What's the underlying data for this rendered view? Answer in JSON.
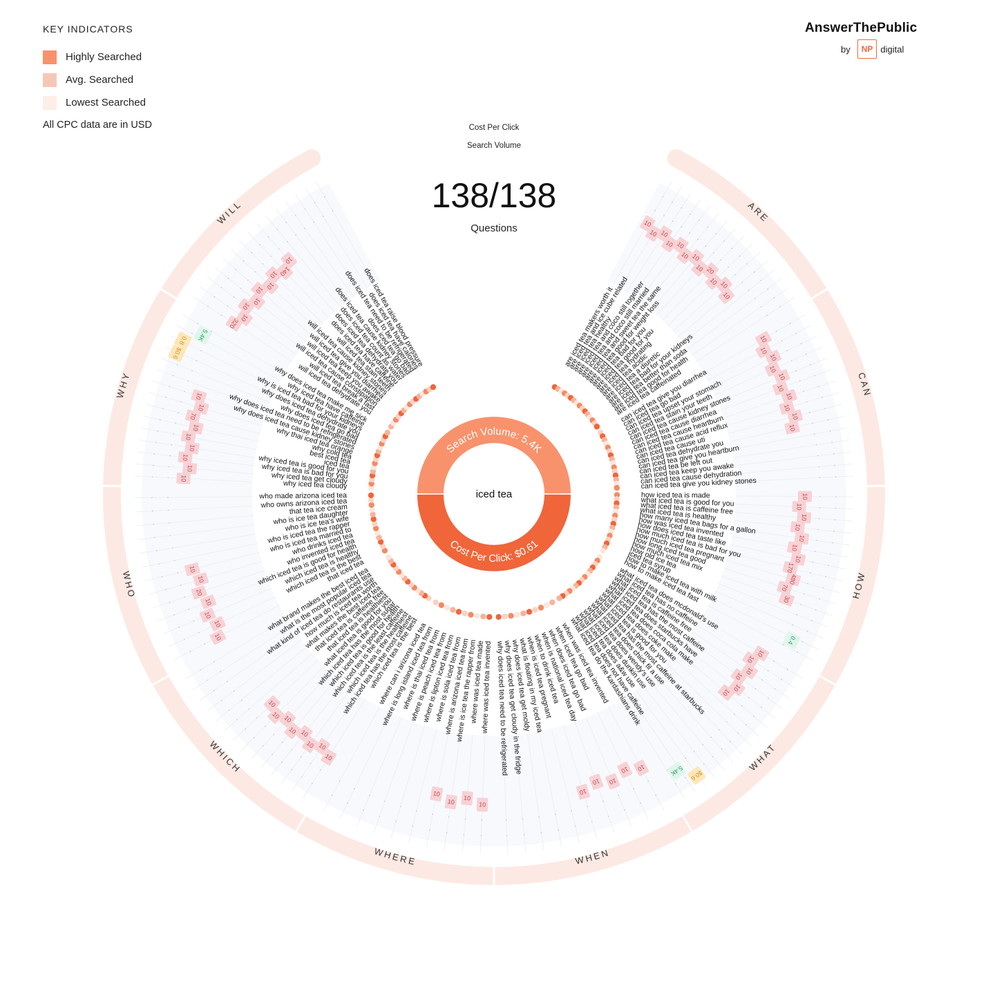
{
  "legend": {
    "title": "KEY INDICATORS",
    "items": [
      {
        "label": "Highly Searched",
        "color": "#f8926c"
      },
      {
        "label": "Avg. Searched",
        "color": "#f7c7b5"
      },
      {
        "label": "Lowest Searched",
        "color": "#fdeee8"
      }
    ],
    "note": "All CPC data are in USD"
  },
  "brand": {
    "name": "AnswerThePublic",
    "by": "by",
    "np": "NP",
    "digital": "digital"
  },
  "header": {
    "cpc_label": "Cost Per Click",
    "sv_label": "Search Volume",
    "count": "138/138",
    "count_label": "Questions"
  },
  "center": {
    "keyword": "iced tea",
    "search_volume": "Search Volume: 5.4K",
    "cpc": "Cost Per Click: $0.61"
  },
  "colors": {
    "accent": "#f0653a",
    "accent_light": "#f8926c",
    "ring": "#fde9e3",
    "badge": "#f7d2d5",
    "badge_text": "#c9484f",
    "green": "#dff6ea",
    "green_text": "#2aa56a",
    "yellow": "#fde7b8",
    "yellow_text": "#d9902a"
  },
  "sections": [
    {
      "name": "ARE",
      "questions": [
        "are iced tea makers worth it",
        "are iced tea and ice cube related",
        "are iced tea healthy",
        "are iced tea and coco still together",
        "are iced tea and coco still married",
        "are iced tea and sweet tea the same",
        "are iced tea good for weight loss",
        "are iced tea bad for you",
        "are iced tea good for you",
        "are iced tea hydrating",
        "are iced tea acidic",
        "are iced tea a diuretic",
        "are iced tea bad for your kidneys",
        "are iced tea better than soda",
        "are iced tea good for health",
        "are iced tea caffeinated"
      ]
    },
    {
      "name": "CAN",
      "questions": [
        "can iced tea give you diarrhea",
        "can iced tea go bad",
        "can iced tea upset your stomach",
        "can iced tea stain your teeth",
        "can iced tea cause kidney stones",
        "can iced tea cause diarrhea",
        "can iced tea cause heartburn",
        "can iced tea cause acid reflux",
        "can iced tea cause uti",
        "can iced tea dehydrate you",
        "can iced tea give you heartburn",
        "can iced tea be left out",
        "can iced tea keep you awake",
        "can iced tea cause dehydration",
        "can iced tea give you kidney stones"
      ]
    },
    {
      "name": "HOW",
      "questions": [
        "how iced tea is made",
        "what iced tea is good for you",
        "what iced tea is caffeine free",
        "what iced tea is healthy",
        "how many iced tea bags for a gallon",
        "how was iced tea invented",
        "how does iced tea taste like",
        "how much iced tea is bad for you",
        "how much iced tea pregnant",
        "how long iced tea good",
        "how much iced tea mix",
        "how old ice tea",
        "iced tea syrup",
        "how to make iced tea with milk",
        "how to make iced tea fast"
      ]
    },
    {
      "name": "WHAT",
      "questions": [
        "what iced tea does mcdonald's use",
        "what iced tea has no caffeine",
        "what iced tea is caffeine free",
        "what iced tea has the most caffeine",
        "what iced tea does starbucks have",
        "what iced tea does coca cola make",
        "what iced tea does coke make",
        "what iced tea is good for you",
        "what iced tea has the most caffeine at starbucks",
        "what iced tea does chick fil a use",
        "what iced tea does wendy's use",
        "what iced tea does dunkin use",
        "what iced tea does a&w use",
        "what iced tea does not have caffeine",
        "what iced tea do the kardashians drink"
      ]
    },
    {
      "name": "WHEN",
      "questions": [
        "when was iced tea invented",
        "when iced tea go bad",
        "when does iced tea go bad",
        "when is national iced tea day",
        "when to drink iced tea",
        "when is iced tea pregnant",
        "what is floating in my iced tea",
        "why does iced tea get moldy",
        "why does iced tea get cloudy in the fridge",
        "why does iced tea need to be refrigerated"
      ]
    },
    {
      "name": "WHERE",
      "questions": [
        "where was iced tea invented",
        "where was iced tea made",
        "where is ice tea the rapper from",
        "where is arizona iced tea from",
        "where is sola iced tea from",
        "where is lipton iced tea from",
        "where is peach iced tea from",
        "where is thai iced tea from",
        "where is long island iced tea from",
        "where can i arizona iced tea"
      ]
    },
    {
      "name": "WHICH",
      "questions": [
        "which iced tea is the best",
        "which iced tea has the most caffeine",
        "which iced tea is the healthiest",
        "which iced tea is the least caffeine",
        "which iced tea is good for health",
        "which iced tea has the most sugar",
        "what iced tea is good for you",
        "that iced tea is healthiest",
        "that iced tea is caffeine free",
        "what makes the best iced tea",
        "how much is iced tea worth",
        "what kind of iced tea do restaurants use",
        "what is the most popular iced tea",
        "what brand makes the best iced tea"
      ]
    },
    {
      "name": "WHO",
      "questions": [
        "that iced tea",
        "which iced tea is the best",
        "which iced tea is healthy",
        "which iced tea is good for health",
        "who invented iced tea",
        "who drinks iced tea",
        "who is iced tea married to",
        "who is iced tea the rapper",
        "who is ice tea's wife",
        "who is ice tea daughter",
        "that tea ice cream",
        "who owns arizona iced tea",
        "who made arizona iced tea"
      ]
    },
    {
      "name": "WHY",
      "questions": [
        "why iced tea cloudy",
        "why iced tea get cloudy",
        "why iced tea is bad for you",
        "why iced tea is good for you",
        "iced tea",
        "best iced tea",
        "why cold tea",
        "why thai iced tea orange",
        "why does iced tea cause kidney stones",
        "why does iced tea need to be refrigerated",
        "why does iced tea go bad",
        "why does iced tea dehydrate you",
        "why is iced tea bad for your kidneys",
        "why iced tea have caffeine",
        "why does iced tea make me sick"
      ]
    },
    {
      "name": "WILL",
      "questions": [
        "will iced tea dehydrate you",
        "will iced tea break a fast",
        "will iced tea cause constipation",
        "will iced tea keep you awake",
        "will iced tea give you diarrhea",
        "will iced tea cause kidney stones",
        "will iced tea stain teeth",
        "does iced tea have caffeine",
        "does iced tea dehydrate you",
        "does iced tea count as water",
        "does iced tea cause kidney stones",
        "does iced tea go bad",
        "does iced tea need to be refrigerated",
        "does iced tea have calories",
        "does iced tea raise blood pressure"
      ]
    }
  ],
  "badges": {
    "ARE": [
      "10",
      "10",
      "10",
      "10",
      "10",
      "10",
      "10",
      "10",
      "20",
      "10",
      "10",
      "10"
    ],
    "CAN": [
      "10",
      "10",
      "10",
      "10",
      "10",
      "10",
      "10",
      "10",
      "10",
      "10"
    ],
    "HOW": [
      "10",
      "10",
      "10",
      "10",
      "10",
      "10",
      "10",
      "170",
      "480",
      "70",
      "30"
    ],
    "WHAT": [
      "10",
      "10",
      "10",
      "10",
      "10",
      "10"
    ],
    "WHEN": [
      "10",
      "10",
      "10",
      "10",
      "10"
    ],
    "WHERE": [
      "10",
      "10",
      "10",
      "10"
    ],
    "WHICH": [
      "10",
      "10",
      "10",
      "10",
      "10",
      "10",
      "10",
      "10"
    ],
    "WHO": [
      "10",
      "10",
      "10",
      "10",
      "20",
      "10",
      "10"
    ],
    "WHY": [
      "10",
      "10",
      "10",
      "10",
      "10",
      "10",
      "70",
      "10",
      "10"
    ],
    "WILL": [
      "320",
      "10",
      "10",
      "10",
      "10",
      "10",
      "10",
      "140",
      "10"
    ]
  },
  "specials": [
    {
      "section": "HOW",
      "kind": "green",
      "text": "0.4"
    },
    {
      "section": "WHAT",
      "kind": "green",
      "text": "5.4K"
    },
    {
      "section": "WHAT",
      "kind": "yellow",
      "text": "$0.6"
    },
    {
      "section": "WHY",
      "kind": "green",
      "text": "5.4K"
    },
    {
      "section": "WHY",
      "kind": "yellow",
      "text": "0.8"
    },
    {
      "section": "WHY",
      "kind": "yellow",
      "text": "$0.6"
    }
  ]
}
